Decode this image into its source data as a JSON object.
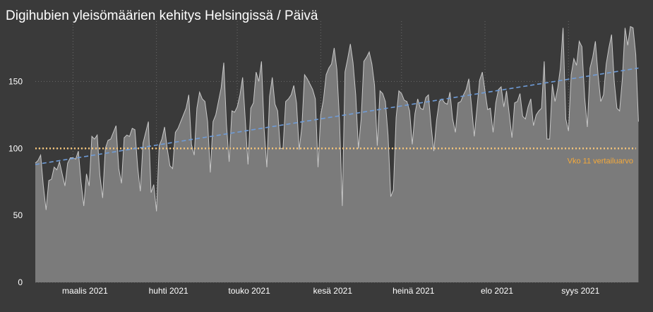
{
  "chart_data": {
    "type": "area",
    "title": "Digihubien yleisömäärien kehitys Helsingissä / Päivä",
    "xlabel": "",
    "ylabel": "",
    "x_range": [
      "2021-02-15",
      "2021-09-24"
    ],
    "ylim": [
      0,
      195
    ],
    "yticks": [
      0,
      50,
      100,
      150
    ],
    "xticks": [
      {
        "date": "2021-03-01",
        "label": "maalis 2021"
      },
      {
        "date": "2021-04-01",
        "label": "huhti 2021"
      },
      {
        "date": "2021-05-01",
        "label": "touko 2021"
      },
      {
        "date": "2021-06-01",
        "label": "kesä 2021"
      },
      {
        "date": "2021-07-01",
        "label": "heinä 2021"
      },
      {
        "date": "2021-08-01",
        "label": "elo 2021"
      },
      {
        "date": "2021-09-01",
        "label": "syys 2021"
      }
    ],
    "grid": true,
    "series": [
      {
        "start_date": "2021-02-15",
        "values": [
          89,
          91,
          95,
          72,
          54,
          76,
          77,
          86,
          84,
          90,
          81,
          72,
          89,
          93,
          93,
          92,
          98,
          75,
          57,
          81,
          72,
          109,
          107,
          110,
          80,
          63,
          100,
          106,
          107,
          112,
          117,
          85,
          74,
          108,
          110,
          109,
          115,
          114,
          86,
          68,
          104,
          112,
          120,
          67,
          73,
          53,
          102,
          107,
          116,
          100,
          87,
          85,
          112,
          115,
          120,
          125,
          130,
          140,
          103,
          95,
          130,
          142,
          137,
          135,
          120,
          82,
          120,
          125,
          135,
          145,
          164,
          118,
          90,
          128,
          127,
          131,
          140,
          153,
          121,
          88,
          130,
          134,
          157,
          150,
          165,
          114,
          86,
          139,
          153,
          133,
          128,
          100,
          100,
          135,
          137,
          140,
          147,
          134,
          99,
          116,
          155,
          152,
          148,
          144,
          137,
          86,
          125,
          136,
          155,
          160,
          163,
          175,
          159,
          120,
          57,
          157,
          167,
          178,
          164,
          140,
          100,
          122,
          165,
          168,
          172,
          163,
          147,
          102,
          143,
          141,
          135,
          110,
          64,
          69,
          123,
          143,
          141,
          136,
          135,
          128,
          103,
          126,
          137,
          130,
          129,
          138,
          140,
          117,
          98,
          121,
          135,
          137,
          134,
          133,
          142,
          122,
          112,
          134,
          135,
          140,
          144,
          152,
          132,
          109,
          130,
          151,
          157,
          143,
          129,
          130,
          112,
          134,
          144,
          146,
          131,
          143,
          126,
          108,
          134,
          135,
          141,
          124,
          122,
          131,
          137,
          117,
          125,
          128,
          130,
          165,
          107,
          107,
          148,
          135,
          145,
          160,
          190,
          122,
          113,
          155,
          167,
          162,
          180,
          176,
          138,
          116,
          160,
          168,
          180,
          155,
          135,
          140,
          163,
          175,
          185,
          150,
          130,
          128,
          152,
          190,
          177,
          191,
          190,
          170,
          120
        ]
      }
    ],
    "trendline": {
      "style": "dashed",
      "start_value": 88,
      "end_value": 160,
      "color": "#6f9cd8"
    },
    "reference_line": {
      "value": 100,
      "label": "Vko 11 vertailuarvo",
      "color": "#f2c37a"
    },
    "colors": {
      "background": "#3a3a3a",
      "area_fill": "#7b7b7b",
      "area_line": "#c8c8c8",
      "grid": "#6a6a6a",
      "label_text": "#ffffff",
      "reference_label": "#f4a93b"
    }
  }
}
